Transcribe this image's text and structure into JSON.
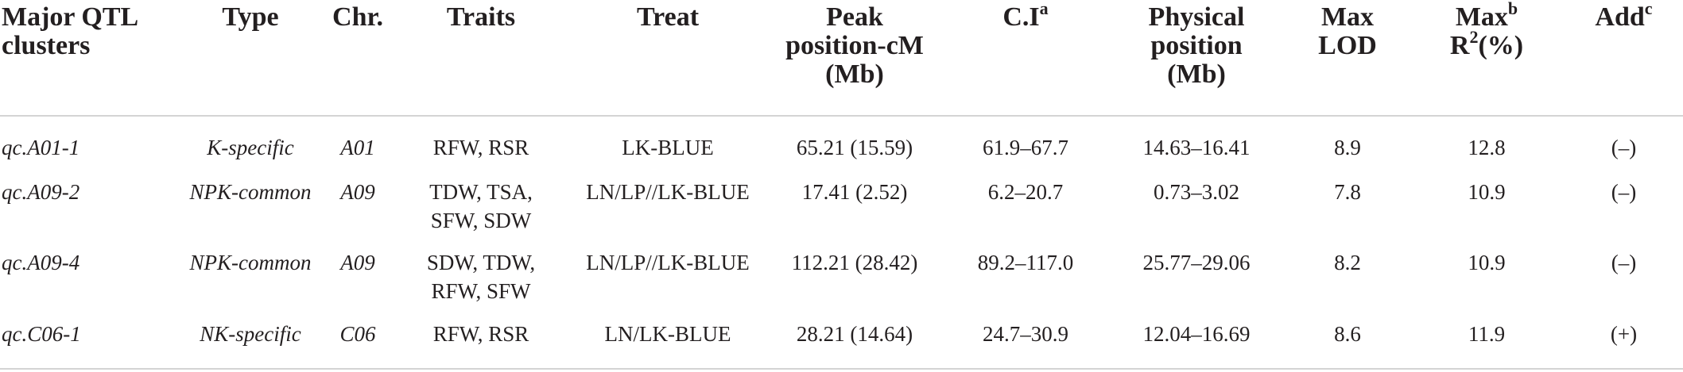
{
  "headers": {
    "major_qtl_line1": "Major QTL",
    "major_qtl_line2": "clusters",
    "type": "Type",
    "chr": "Chr.",
    "traits": "Traits",
    "treat": "Treat",
    "peak_line1": "Peak",
    "peak_line2": "position-cM",
    "peak_line3": "(Mb)",
    "ci": "C.I",
    "ci_sup": "a",
    "physical_line1": "Physical",
    "physical_line2": "position",
    "physical_line3": "(Mb)",
    "maxlod_line1": "Max",
    "maxlod_line2": "LOD",
    "maxr2_line1": "Max",
    "maxr2_line1_sup": "b",
    "maxr2_line2_R": "R",
    "maxr2_line2_sup": "2",
    "maxr2_line2_rest": "(%)",
    "add": "Add",
    "add_sup": "c"
  },
  "rows": [
    {
      "cluster": "qc.A01-1",
      "type": "K-specific",
      "chr": "A01",
      "traits_line1": "RFW, RSR",
      "traits_line2": "",
      "treat": "LK-BLUE",
      "peak": "65.21 (15.59)",
      "ci": "61.9–67.7",
      "physical": "14.63–16.41",
      "max_lod": "8.9",
      "max_r2": "12.8",
      "add": "(–)"
    },
    {
      "cluster": "qc.A09-2",
      "type": "NPK-common",
      "chr": "A09",
      "traits_line1": "TDW, TSA,",
      "traits_line2": "SFW, SDW",
      "treat": "LN/LP//LK-BLUE",
      "peak": "17.41 (2.52)",
      "ci": "6.2–20.7",
      "physical": "0.73–3.02",
      "max_lod": "7.8",
      "max_r2": "10.9",
      "add": "(–)"
    },
    {
      "cluster": "qc.A09-4",
      "type": "NPK-common",
      "chr": "A09",
      "traits_line1": "SDW, TDW,",
      "traits_line2": "RFW, SFW",
      "treat": "LN/LP//LK-BLUE",
      "peak": "112.21 (28.42)",
      "ci": "89.2–117.0",
      "physical": "25.77–29.06",
      "max_lod": "8.2",
      "max_r2": "10.9",
      "add": "(–)"
    },
    {
      "cluster": "qc.C06-1",
      "type": "NK-specific",
      "chr": "C06",
      "traits_line1": "RFW, RSR",
      "traits_line2": "",
      "treat": "LN/LK-BLUE",
      "peak": "28.21 (14.64)",
      "ci": "24.7–30.9",
      "physical": "12.04–16.69",
      "max_lod": "8.6",
      "max_r2": "11.9",
      "add": "(+)"
    }
  ]
}
